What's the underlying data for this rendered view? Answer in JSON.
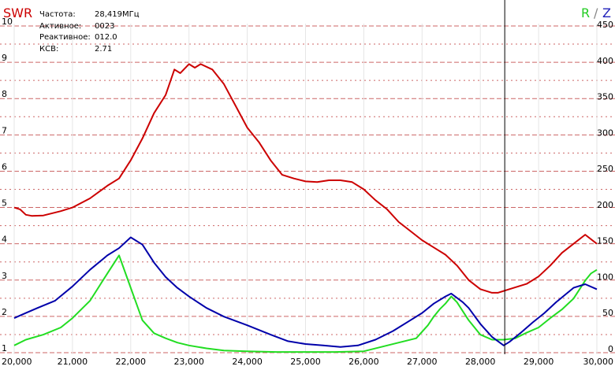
{
  "header": {
    "left_axis_title": "SWR",
    "right_axis_title_r": "R",
    "right_axis_title_sep": "/",
    "right_axis_title_z": "Z"
  },
  "readout": [
    {
      "label": "Частота:",
      "value": "28,419МГц"
    },
    {
      "label": "Активное:",
      "value": "0023"
    },
    {
      "label": "Реактивное:",
      "value": "012.0"
    },
    {
      "label": "КСВ:",
      "value": "2.71"
    }
  ],
  "colors": {
    "swr": "#cc0000",
    "r": "#22dd22",
    "z": "#0000aa",
    "grid": "#cc6666",
    "cursor": "#000000"
  },
  "chart_data": {
    "type": "line",
    "x_unit_ticks": [
      "20,000",
      "21,000",
      "22,000",
      "23,000",
      "24,000",
      "25,000",
      "26,000",
      "27,000",
      "28,000",
      "29,000",
      "30,000"
    ],
    "xlim": [
      20.0,
      30.0
    ],
    "y_left": {
      "label": "SWR",
      "ylim": [
        1,
        10
      ],
      "ticks": [
        "1",
        "2",
        "3",
        "4",
        "5",
        "6",
        "7",
        "8",
        "9",
        "10"
      ]
    },
    "y_right": {
      "label": "R / Z",
      "ylim": [
        0,
        450
      ],
      "ticks": [
        "0",
        "50",
        "100",
        "150",
        "200",
        "250",
        "300",
        "350",
        "400",
        "450"
      ]
    },
    "grid": true,
    "cursor_x": 28.419,
    "series": [
      {
        "name": "SWR",
        "axis": "left",
        "x": [
          20.0,
          20.1,
          20.2,
          20.3,
          20.5,
          20.8,
          21.0,
          21.3,
          21.6,
          21.8,
          22.0,
          22.2,
          22.4,
          22.6,
          22.75,
          22.85,
          23.0,
          23.1,
          23.2,
          23.4,
          23.6,
          23.8,
          24.0,
          24.2,
          24.4,
          24.6,
          24.8,
          25.0,
          25.2,
          25.4,
          25.6,
          25.8,
          26.0,
          26.2,
          26.4,
          26.6,
          26.8,
          27.0,
          27.2,
          27.4,
          27.6,
          27.8,
          28.0,
          28.2,
          28.3,
          28.5,
          28.8,
          29.0,
          29.2,
          29.4,
          29.6,
          29.8,
          30.0
        ],
        "values": [
          5.0,
          4.95,
          4.8,
          4.77,
          4.78,
          4.9,
          5.0,
          5.25,
          5.6,
          5.8,
          6.3,
          6.9,
          7.6,
          8.1,
          8.8,
          8.7,
          8.95,
          8.85,
          8.95,
          8.8,
          8.4,
          7.8,
          7.2,
          6.8,
          6.3,
          5.9,
          5.8,
          5.72,
          5.7,
          5.75,
          5.75,
          5.7,
          5.5,
          5.2,
          4.95,
          4.6,
          4.35,
          4.1,
          3.9,
          3.7,
          3.4,
          3.0,
          2.75,
          2.65,
          2.65,
          2.75,
          2.9,
          3.1,
          3.4,
          3.75,
          4.0,
          4.25,
          4.0
        ]
      },
      {
        "name": "R",
        "axis": "right",
        "x": [
          20.0,
          20.2,
          20.5,
          20.8,
          21.0,
          21.3,
          21.6,
          21.8,
          22.0,
          22.2,
          22.4,
          22.6,
          22.8,
          23.0,
          23.3,
          23.6,
          24.0,
          24.5,
          25.0,
          25.5,
          26.0,
          26.3,
          26.6,
          26.9,
          27.1,
          27.2,
          27.3,
          27.4,
          27.5,
          27.6,
          27.8,
          28.0,
          28.2,
          28.4,
          28.6,
          28.8,
          29.0,
          29.2,
          29.4,
          29.6,
          29.8,
          29.9,
          30.0
        ],
        "values": [
          10,
          18,
          25,
          35,
          48,
          72,
          110,
          135,
          90,
          45,
          27,
          20,
          14,
          10,
          6,
          3,
          2,
          1,
          1,
          1,
          2,
          8,
          14,
          20,
          38,
          50,
          60,
          68,
          78,
          70,
          45,
          25,
          18,
          18,
          20,
          28,
          35,
          48,
          60,
          75,
          100,
          110,
          115
        ]
      },
      {
        "name": "Z",
        "axis": "right",
        "x": [
          20.0,
          20.2,
          20.4,
          20.7,
          21.0,
          21.3,
          21.6,
          21.8,
          22.0,
          22.2,
          22.4,
          22.6,
          22.8,
          23.0,
          23.3,
          23.6,
          24.0,
          24.4,
          24.7,
          25.0,
          25.3,
          25.6,
          25.9,
          26.2,
          26.5,
          26.8,
          27.0,
          27.2,
          27.4,
          27.5,
          27.7,
          27.8,
          28.0,
          28.2,
          28.4,
          28.5,
          28.7,
          28.9,
          29.1,
          29.3,
          29.6,
          29.8,
          30.0
        ],
        "values": [
          48,
          55,
          62,
          72,
          92,
          115,
          135,
          145,
          160,
          150,
          125,
          105,
          90,
          78,
          62,
          50,
          38,
          25,
          16,
          12,
          10,
          8,
          10,
          18,
          30,
          45,
          55,
          68,
          78,
          82,
          70,
          62,
          40,
          22,
          10,
          15,
          28,
          42,
          55,
          70,
          90,
          95,
          88
        ]
      }
    ]
  }
}
